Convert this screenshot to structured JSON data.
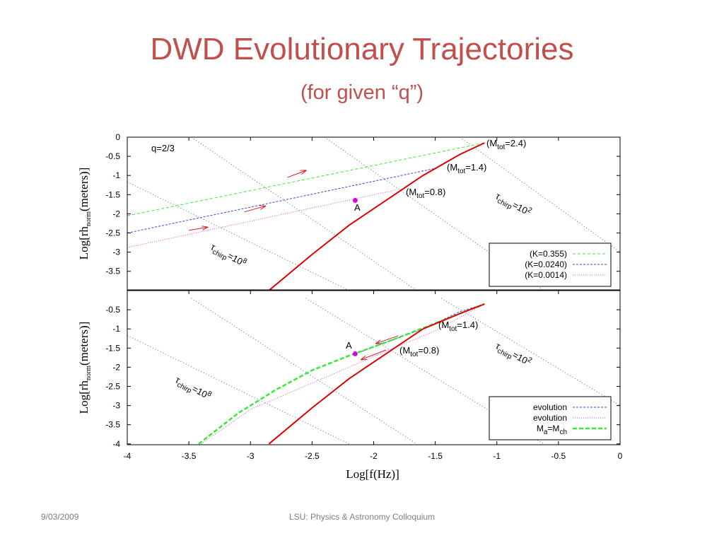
{
  "slide": {
    "title": "DWD Evolutionary Trajectories",
    "subtitle": "(for given “q”)",
    "footer_date": "9/03/2009",
    "footer_venue": "LSU:  Physics & Astronomy Colloquium"
  },
  "colors": {
    "title": "#c0504d",
    "mch_curve": "#e00000",
    "k0355": "#33ee33",
    "k0240": "#4040ee",
    "k0014": "#ee44ee",
    "arrow": "#cc2222",
    "point_A": "#dd00dd",
    "chirp": "#666666"
  },
  "chart_data": [
    {
      "type": "line",
      "panel": "top",
      "xlabel": "",
      "ylabel": "Log[rh_norm(meters)]",
      "xlim": [
        -4,
        0
      ],
      "ylim": [
        -4,
        0
      ],
      "yticks": [
        "0",
        "-0.5",
        "-1",
        "-1.5",
        "-2",
        "-2.5",
        "-3",
        "-3.5"
      ],
      "grid": false,
      "legend_position": "bottom-right",
      "annotations": {
        "q_label": "q=2/3",
        "point_label": "A",
        "chirp_1e8": "τ_chirp=10^8",
        "chirp_1e2": "τ_chirp=10^2",
        "m24": "(M_tot=2.4)",
        "m14": "(M_tot=1.4)",
        "m08": "(M_tot=0.8)"
      },
      "series": [
        {
          "name": "(K=0.355)",
          "style": "dashed",
          "x": [
            -4,
            -1.1
          ],
          "y": [
            -2.05,
            -0.15
          ]
        },
        {
          "name": "(K=0.0240)",
          "style": "dashed",
          "x": [
            -4,
            -1.48
          ],
          "y": [
            -2.5,
            -0.8
          ]
        },
        {
          "name": "(K=0.0014)",
          "style": "dotted",
          "x": [
            -4,
            -1.82
          ],
          "y": [
            -2.88,
            -1.38
          ]
        },
        {
          "style": "solid",
          "x": [
            -2.85,
            -2.5,
            -2.2,
            -1.9,
            -1.6,
            -1.3,
            -1.1
          ],
          "y": [
            -4.0,
            -3.06,
            -2.3,
            -1.65,
            -1.0,
            -0.45,
            -0.15
          ]
        }
      ],
      "point_A": {
        "x": -2.15,
        "y": -1.65
      },
      "arrows": [
        {
          "x1": -2.7,
          "y1": -1.05,
          "x2": -2.55,
          "y2": -0.87
        },
        {
          "x1": -3.05,
          "y1": -1.95,
          "x2": -2.88,
          "y2": -1.8
        },
        {
          "x1": -3.5,
          "y1": -2.43,
          "x2": -3.35,
          "y2": -2.35
        }
      ],
      "chirp_lines": [
        {
          "x": [
            -4.0,
            -2.2
          ],
          "y": [
            -1.17,
            -4.0
          ]
        },
        {
          "x": [
            -3.48,
            -1.65
          ],
          "y": [
            0.0,
            -4.0
          ]
        },
        {
          "x": [
            -2.4,
            -0.62
          ],
          "y": [
            0.0,
            -4.0
          ]
        },
        {
          "x": [
            -1.3,
            0.0
          ],
          "y": [
            0.0,
            -3.0
          ]
        }
      ]
    },
    {
      "type": "line",
      "panel": "bottom",
      "xlabel": "Log[f(Hz)]",
      "ylabel": "Log[rh_norm(meters)]",
      "xlim": [
        -4,
        0
      ],
      "ylim": [
        -4,
        0
      ],
      "xticks": [
        "-4",
        "-3.5",
        "-3",
        "-2.5",
        "-2",
        "-1.5",
        "-1",
        "-0.5",
        "0"
      ],
      "yticks": [
        "-0.5",
        "-1",
        "-1.5",
        "-2",
        "-2.5",
        "-3",
        "-3.5",
        "-4"
      ],
      "grid": false,
      "legend_position": "bottom-right",
      "annotations": {
        "point_label": "A",
        "chirp_1e8": "τ_chirp=10^8",
        "chirp_1e2": "τ_chirp=10^2",
        "m14": "(M_tot=1.4)",
        "m08": "(M_tot=0.8)"
      },
      "series": [
        {
          "name": "evolution",
          "style": "dashed",
          "x": [
            -2.15,
            -1.9,
            -1.6,
            -1.3,
            -1.1
          ],
          "y": [
            -1.65,
            -1.35,
            -1.0,
            -0.55,
            -0.35
          ]
        },
        {
          "name": "evolution",
          "style": "dotted",
          "x": [
            -3.4,
            -3.0,
            -2.6,
            -2.2,
            -1.8,
            -1.5,
            -1.3,
            -1.1
          ],
          "y": [
            -4.0,
            -3.1,
            -2.55,
            -2.0,
            -1.45,
            -1.05,
            -0.7,
            -0.35
          ]
        },
        {
          "name": "M_a=M_ch",
          "style": "dashed",
          "x": [
            -3.42,
            -3.1,
            -2.8,
            -2.5,
            -2.2,
            -1.9,
            -1.6,
            -1.3,
            -1.1
          ],
          "y": [
            -4.0,
            -3.2,
            -2.6,
            -2.08,
            -1.7,
            -1.35,
            -0.98,
            -0.6,
            -0.35
          ]
        },
        {
          "style": "solid",
          "x": [
            -2.85,
            -2.5,
            -2.2,
            -1.9,
            -1.6,
            -1.3,
            -1.1
          ],
          "y": [
            -4.0,
            -3.06,
            -2.3,
            -1.65,
            -1.0,
            -0.6,
            -0.35
          ]
        }
      ],
      "point_A": {
        "x": -2.15,
        "y": -1.65
      },
      "arrows": [
        {
          "x1": -1.8,
          "y1": -1.18,
          "x2": -1.98,
          "y2": -1.38
        },
        {
          "x1": -1.9,
          "y1": -1.55,
          "x2": -2.1,
          "y2": -1.8
        }
      ],
      "chirp_lines": [
        {
          "x": [
            -4.0,
            -2.2
          ],
          "y": [
            -1.17,
            -4.0
          ]
        },
        {
          "x": [
            -3.48,
            -1.65
          ],
          "y": [
            -0.2,
            -4.0
          ]
        },
        {
          "x": [
            -2.55,
            -0.62
          ],
          "y": [
            -0.2,
            -4.0
          ]
        },
        {
          "x": [
            -1.45,
            0.0
          ],
          "y": [
            -0.2,
            -3.0
          ]
        }
      ]
    }
  ]
}
